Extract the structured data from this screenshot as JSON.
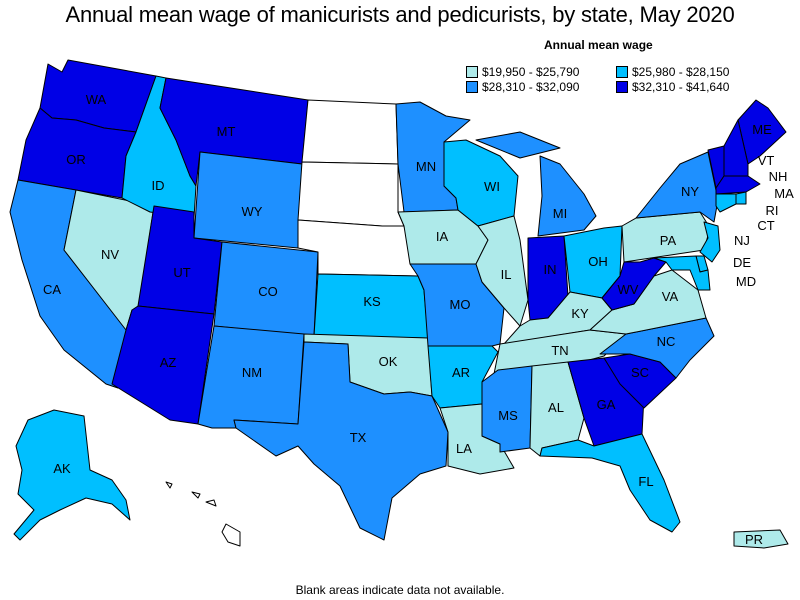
{
  "title": "Annual mean wage of manicurists and pedicurists, by state, May 2020",
  "legend": {
    "title": "Annual mean wage",
    "items": [
      {
        "label": "$19,950 - $25,790",
        "color": "#aeeaea"
      },
      {
        "label": "$25,980 - $28,150",
        "color": "#00bfff"
      },
      {
        "label": "$28,310 - $32,090",
        "color": "#1e90ff"
      },
      {
        "label": "$32,310 - $41,640",
        "color": "#0000e6"
      }
    ]
  },
  "footnote": "Blank areas indicate data not available.",
  "states": {
    "WA": {
      "tier": 3
    },
    "OR": {
      "tier": 3
    },
    "CA": {
      "tier": 2
    },
    "NV": {
      "tier": 0
    },
    "ID": {
      "tier": 1
    },
    "MT": {
      "tier": 3
    },
    "WY": {
      "tier": 2
    },
    "UT": {
      "tier": 3
    },
    "AZ": {
      "tier": 3
    },
    "CO": {
      "tier": 2
    },
    "NM": {
      "tier": 2
    },
    "ND": {
      "tier": null
    },
    "SD": {
      "tier": null
    },
    "NE": {
      "tier": null
    },
    "KS": {
      "tier": 1
    },
    "OK": {
      "tier": 0
    },
    "TX": {
      "tier": 2
    },
    "MN": {
      "tier": 2
    },
    "IA": {
      "tier": 0
    },
    "MO": {
      "tier": 2
    },
    "AR": {
      "tier": 1
    },
    "LA": {
      "tier": 0
    },
    "WI": {
      "tier": 1
    },
    "IL": {
      "tier": 0
    },
    "MI": {
      "tier": 2
    },
    "IN": {
      "tier": 3
    },
    "OH": {
      "tier": 1
    },
    "KY": {
      "tier": 0
    },
    "TN": {
      "tier": 0
    },
    "MS": {
      "tier": 2
    },
    "AL": {
      "tier": 0
    },
    "GA": {
      "tier": 3
    },
    "FL": {
      "tier": 1
    },
    "SC": {
      "tier": 3
    },
    "NC": {
      "tier": 2
    },
    "VA": {
      "tier": 0
    },
    "WV": {
      "tier": 3
    },
    "PA": {
      "tier": 0
    },
    "NY": {
      "tier": 2
    },
    "ME": {
      "tier": 3
    },
    "VT": {
      "tier": 3
    },
    "NH": {
      "tier": 3
    },
    "MA": {
      "tier": 3
    },
    "RI": {
      "tier": 1
    },
    "CT": {
      "tier": 1
    },
    "NJ": {
      "tier": 1
    },
    "DE": {
      "tier": 1
    },
    "MD": {
      "tier": 1
    },
    "AK": {
      "tier": 1
    },
    "HI": {
      "tier": null
    },
    "PR": {
      "tier": 0
    }
  }
}
